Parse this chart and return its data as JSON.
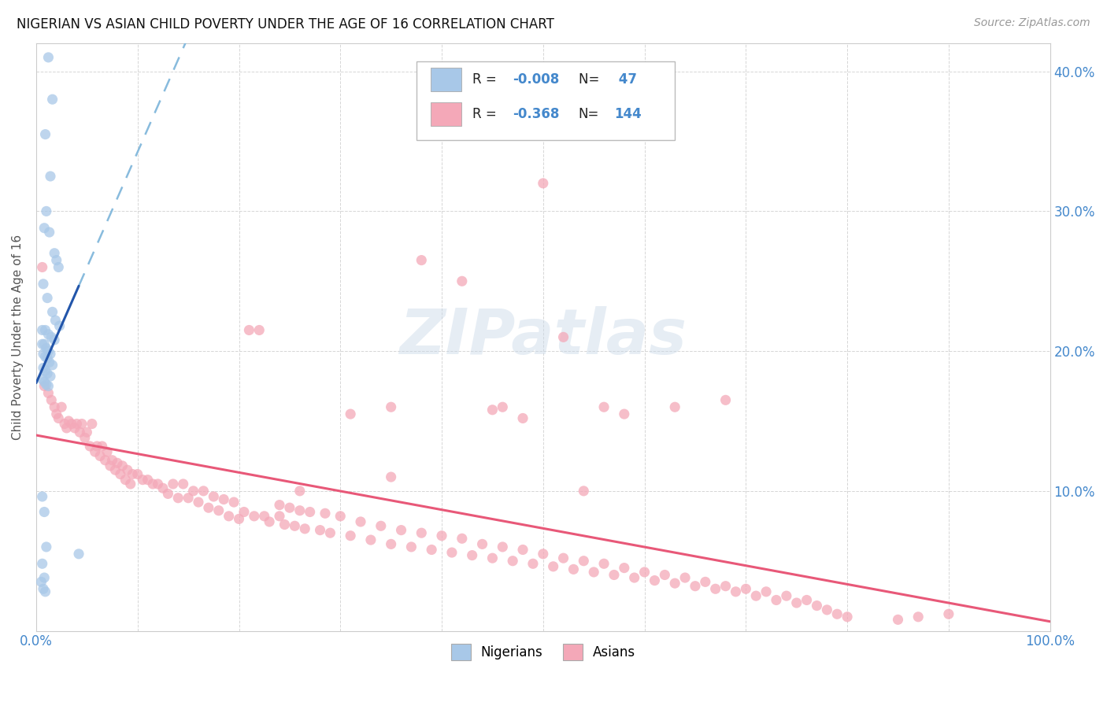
{
  "title": "NIGERIAN VS ASIAN CHILD POVERTY UNDER THE AGE OF 16 CORRELATION CHART",
  "source": "Source: ZipAtlas.com",
  "ylabel": "Child Poverty Under the Age of 16",
  "watermark": "ZIPatlas",
  "nigerian_R": -0.008,
  "nigerian_N": 47,
  "asian_R": -0.368,
  "asian_N": 144,
  "nigerian_color": "#a8c8e8",
  "asian_color": "#f4a8b8",
  "nigerian_line_color": "#2255aa",
  "asian_line_color": "#e85878",
  "dashed_line_color": "#88bbdd",
  "xlim": [
    0,
    1.0
  ],
  "ylim": [
    0,
    0.42
  ],
  "nigerian_x": [
    0.012,
    0.016,
    0.009,
    0.014,
    0.022,
    0.01,
    0.008,
    0.018,
    0.013,
    0.02,
    0.007,
    0.011,
    0.016,
    0.019,
    0.023,
    0.006,
    0.009,
    0.012,
    0.015,
    0.018,
    0.006,
    0.008,
    0.01,
    0.012,
    0.014,
    0.007,
    0.009,
    0.011,
    0.013,
    0.016,
    0.007,
    0.009,
    0.011,
    0.014,
    0.006,
    0.008,
    0.01,
    0.012,
    0.006,
    0.008,
    0.01,
    0.042,
    0.006,
    0.008,
    0.005,
    0.007,
    0.009
  ],
  "nigerian_y": [
    0.41,
    0.38,
    0.355,
    0.325,
    0.26,
    0.3,
    0.288,
    0.27,
    0.285,
    0.265,
    0.248,
    0.238,
    0.228,
    0.222,
    0.218,
    0.215,
    0.215,
    0.212,
    0.21,
    0.208,
    0.205,
    0.205,
    0.202,
    0.2,
    0.198,
    0.198,
    0.196,
    0.195,
    0.192,
    0.19,
    0.188,
    0.186,
    0.184,
    0.182,
    0.18,
    0.178,
    0.176,
    0.175,
    0.096,
    0.085,
    0.06,
    0.055,
    0.048,
    0.038,
    0.035,
    0.03,
    0.028
  ],
  "asian_x": [
    0.006,
    0.008,
    0.012,
    0.015,
    0.018,
    0.02,
    0.022,
    0.025,
    0.028,
    0.03,
    0.032,
    0.035,
    0.038,
    0.04,
    0.043,
    0.045,
    0.048,
    0.05,
    0.053,
    0.055,
    0.058,
    0.06,
    0.063,
    0.065,
    0.068,
    0.07,
    0.073,
    0.075,
    0.078,
    0.08,
    0.083,
    0.085,
    0.088,
    0.09,
    0.093,
    0.095,
    0.1,
    0.105,
    0.11,
    0.115,
    0.12,
    0.125,
    0.13,
    0.135,
    0.14,
    0.145,
    0.15,
    0.155,
    0.16,
    0.165,
    0.17,
    0.175,
    0.18,
    0.185,
    0.19,
    0.195,
    0.2,
    0.205,
    0.21,
    0.215,
    0.22,
    0.225,
    0.23,
    0.24,
    0.245,
    0.25,
    0.255,
    0.26,
    0.265,
    0.27,
    0.28,
    0.285,
    0.29,
    0.3,
    0.31,
    0.32,
    0.33,
    0.34,
    0.35,
    0.36,
    0.37,
    0.38,
    0.39,
    0.4,
    0.41,
    0.42,
    0.43,
    0.44,
    0.45,
    0.46,
    0.47,
    0.48,
    0.49,
    0.5,
    0.51,
    0.52,
    0.53,
    0.54,
    0.55,
    0.56,
    0.57,
    0.58,
    0.59,
    0.6,
    0.61,
    0.62,
    0.63,
    0.64,
    0.65,
    0.66,
    0.67,
    0.68,
    0.69,
    0.7,
    0.71,
    0.72,
    0.73,
    0.74,
    0.75,
    0.76,
    0.77,
    0.78,
    0.79,
    0.8,
    0.85,
    0.87,
    0.9,
    0.45,
    0.48,
    0.5,
    0.35,
    0.38,
    0.42,
    0.46,
    0.52,
    0.54,
    0.56,
    0.58,
    0.24,
    0.26,
    0.31,
    0.35,
    0.63,
    0.68
  ],
  "asian_y": [
    0.26,
    0.175,
    0.17,
    0.165,
    0.16,
    0.155,
    0.152,
    0.16,
    0.148,
    0.145,
    0.15,
    0.148,
    0.145,
    0.148,
    0.142,
    0.148,
    0.138,
    0.142,
    0.132,
    0.148,
    0.128,
    0.132,
    0.125,
    0.132,
    0.122,
    0.128,
    0.118,
    0.122,
    0.115,
    0.12,
    0.112,
    0.118,
    0.108,
    0.115,
    0.105,
    0.112,
    0.112,
    0.108,
    0.108,
    0.105,
    0.105,
    0.102,
    0.098,
    0.105,
    0.095,
    0.105,
    0.095,
    0.1,
    0.092,
    0.1,
    0.088,
    0.096,
    0.086,
    0.094,
    0.082,
    0.092,
    0.08,
    0.085,
    0.215,
    0.082,
    0.215,
    0.082,
    0.078,
    0.082,
    0.076,
    0.088,
    0.075,
    0.086,
    0.073,
    0.085,
    0.072,
    0.084,
    0.07,
    0.082,
    0.068,
    0.078,
    0.065,
    0.075,
    0.062,
    0.072,
    0.06,
    0.07,
    0.058,
    0.068,
    0.056,
    0.066,
    0.054,
    0.062,
    0.052,
    0.06,
    0.05,
    0.058,
    0.048,
    0.055,
    0.046,
    0.052,
    0.044,
    0.05,
    0.042,
    0.048,
    0.04,
    0.045,
    0.038,
    0.042,
    0.036,
    0.04,
    0.034,
    0.038,
    0.032,
    0.035,
    0.03,
    0.032,
    0.028,
    0.03,
    0.025,
    0.028,
    0.022,
    0.025,
    0.02,
    0.022,
    0.018,
    0.015,
    0.012,
    0.01,
    0.008,
    0.01,
    0.012,
    0.158,
    0.152,
    0.32,
    0.11,
    0.265,
    0.25,
    0.16,
    0.21,
    0.1,
    0.16,
    0.155,
    0.09,
    0.1,
    0.155,
    0.16,
    0.16,
    0.165
  ]
}
